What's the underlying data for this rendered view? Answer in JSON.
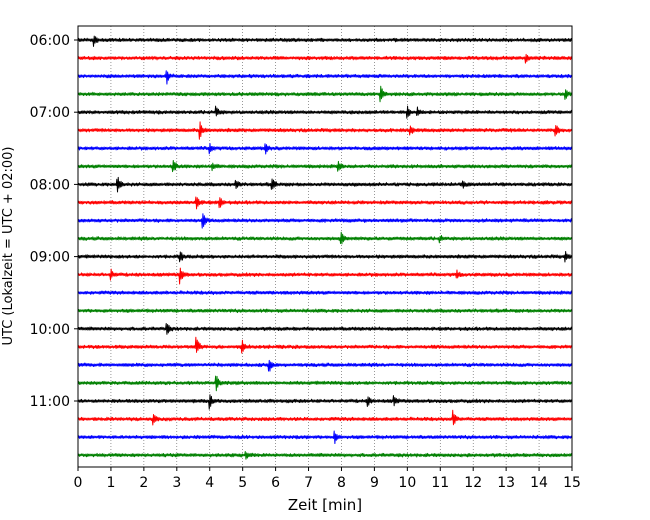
{
  "chart_data": {
    "type": "line",
    "title": "",
    "xlabel": "Zeit  [min]",
    "ylabel": "UTC (Lokalzeit = UTC + 02:00)",
    "xlim": [
      0,
      15
    ],
    "x_ticks": [
      0,
      1,
      2,
      3,
      4,
      5,
      6,
      7,
      8,
      9,
      10,
      11,
      12,
      13,
      14,
      15
    ],
    "x_tick_labels": [
      "0",
      "1",
      "2",
      "3",
      "4",
      "5",
      "6",
      "7",
      "8",
      "9",
      "10",
      "11",
      "12",
      "13",
      "14",
      "15"
    ],
    "y_tick_labels": [
      "06:00",
      "07:00",
      "08:00",
      "09:00",
      "10:00",
      "11:00"
    ],
    "grid": "vertical-dotted",
    "colors": [
      "#000000",
      "#ff0000",
      "#0000ff",
      "#008000"
    ],
    "series": [
      {
        "start": "06:00",
        "color": "#000000",
        "events": [
          {
            "x": 0.5,
            "amp": 0.6
          }
        ]
      },
      {
        "start": "06:15",
        "color": "#ff0000",
        "events": [
          {
            "x": 13.6,
            "amp": 0.5
          }
        ]
      },
      {
        "start": "06:30",
        "color": "#0000ff",
        "events": [
          {
            "x": 2.7,
            "amp": 0.8
          }
        ]
      },
      {
        "start": "06:45",
        "color": "#008000",
        "events": [
          {
            "x": 9.2,
            "amp": 0.8
          },
          {
            "x": 14.8,
            "amp": 0.5
          }
        ]
      },
      {
        "start": "07:00",
        "color": "#000000",
        "events": [
          {
            "x": 4.2,
            "amp": 0.6
          },
          {
            "x": 10.0,
            "amp": 0.7
          },
          {
            "x": 10.3,
            "amp": 0.5
          }
        ]
      },
      {
        "start": "07:15",
        "color": "#ff0000",
        "events": [
          {
            "x": 3.7,
            "amp": 1.0
          },
          {
            "x": 10.1,
            "amp": 0.5
          },
          {
            "x": 14.5,
            "amp": 0.7
          }
        ]
      },
      {
        "start": "07:30",
        "color": "#0000ff",
        "events": [
          {
            "x": 4.0,
            "amp": 0.5
          },
          {
            "x": 5.7,
            "amp": 0.5
          }
        ]
      },
      {
        "start": "07:45",
        "color": "#008000",
        "events": [
          {
            "x": 2.9,
            "amp": 0.8
          },
          {
            "x": 4.1,
            "amp": 0.4
          },
          {
            "x": 7.9,
            "amp": 0.5
          }
        ]
      },
      {
        "start": "08:00",
        "color": "#000000",
        "events": [
          {
            "x": 1.2,
            "amp": 1.0
          },
          {
            "x": 4.8,
            "amp": 0.5
          },
          {
            "x": 5.9,
            "amp": 0.6
          },
          {
            "x": 11.7,
            "amp": 0.4
          }
        ]
      },
      {
        "start": "08:15",
        "color": "#ff0000",
        "events": [
          {
            "x": 3.6,
            "amp": 0.8
          },
          {
            "x": 4.3,
            "amp": 0.8
          }
        ]
      },
      {
        "start": "08:30",
        "color": "#0000ff",
        "events": [
          {
            "x": 3.8,
            "amp": 0.7
          }
        ]
      },
      {
        "start": "08:45",
        "color": "#008000",
        "events": [
          {
            "x": 8.0,
            "amp": 0.6
          },
          {
            "x": 11.0,
            "amp": 0.3
          }
        ]
      },
      {
        "start": "09:00",
        "color": "#000000",
        "events": [
          {
            "x": 3.1,
            "amp": 0.8
          },
          {
            "x": 14.8,
            "amp": 0.5
          }
        ]
      },
      {
        "start": "09:15",
        "color": "#ff0000",
        "events": [
          {
            "x": 1.0,
            "amp": 0.5
          },
          {
            "x": 3.1,
            "amp": 0.9
          },
          {
            "x": 11.5,
            "amp": 0.4
          }
        ]
      },
      {
        "start": "09:30",
        "color": "#0000ff",
        "events": []
      },
      {
        "start": "09:45",
        "color": "#008000",
        "events": []
      },
      {
        "start": "10:00",
        "color": "#000000",
        "events": [
          {
            "x": 2.7,
            "amp": 0.6
          }
        ]
      },
      {
        "start": "10:15",
        "color": "#ff0000",
        "events": [
          {
            "x": 3.6,
            "amp": 1.0
          },
          {
            "x": 5.0,
            "amp": 0.6
          }
        ]
      },
      {
        "start": "10:30",
        "color": "#0000ff",
        "events": [
          {
            "x": 5.8,
            "amp": 0.8
          }
        ]
      },
      {
        "start": "10:45",
        "color": "#008000",
        "events": [
          {
            "x": 4.2,
            "amp": 0.9
          }
        ]
      },
      {
        "start": "11:00",
        "color": "#000000",
        "events": [
          {
            "x": 4.0,
            "amp": 0.8
          },
          {
            "x": 8.8,
            "amp": 0.5
          },
          {
            "x": 9.6,
            "amp": 0.5
          }
        ]
      },
      {
        "start": "11:15",
        "color": "#ff0000",
        "events": [
          {
            "x": 2.3,
            "amp": 0.5
          },
          {
            "x": 11.4,
            "amp": 0.9
          }
        ]
      },
      {
        "start": "11:30",
        "color": "#0000ff",
        "events": [
          {
            "x": 7.8,
            "amp": 0.6
          }
        ]
      },
      {
        "start": "11:45",
        "color": "#008000",
        "events": [
          {
            "x": 5.1,
            "amp": 0.4
          }
        ]
      }
    ]
  }
}
